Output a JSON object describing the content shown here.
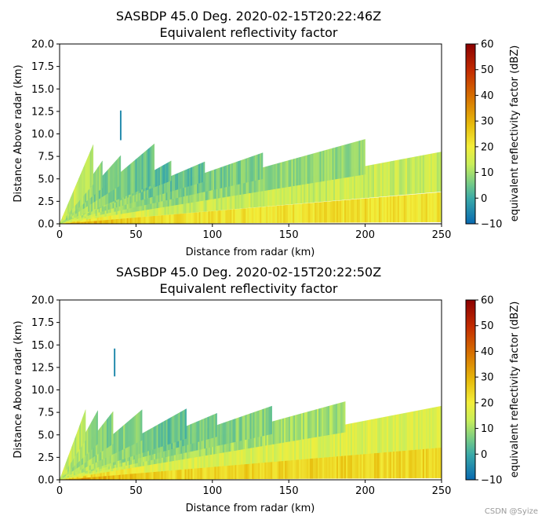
{
  "chart_data": [
    {
      "type": "heatmap",
      "title": "SASBDP 45.0 Deg. 2020-02-15T20:22:46Z",
      "subtitle": "Equivalent reflectivity factor",
      "xlabel": "Distance from radar (km)",
      "ylabel": "Distance Above radar  (km)",
      "xlim": [
        0,
        250
      ],
      "ylim": [
        0,
        20
      ],
      "xticks": [
        "0",
        "50",
        "100",
        "150",
        "200",
        "250"
      ],
      "yticks": [
        "0.0",
        "2.5",
        "5.0",
        "7.5",
        "10.0",
        "12.5",
        "15.0",
        "17.5",
        "20.0"
      ],
      "colorbar": {
        "label": "equivalent reflectivity factor (dBZ)",
        "range": [
          -10,
          60
        ],
        "ticks": [
          "−10",
          "0",
          "10",
          "20",
          "30",
          "40",
          "50",
          "60"
        ]
      },
      "sweeps": [
        {
          "end_x": 250,
          "bottom_end_y": 0.2,
          "top_end_y": 3.5,
          "value": 22
        },
        {
          "end_x": 250,
          "bottom_end_y": 3.6,
          "top_end_y": 8.0,
          "value": 14
        },
        {
          "end_x": 200,
          "bottom_end_y": 5.5,
          "top_end_y": 9.4,
          "value": 8
        },
        {
          "end_x": 133,
          "bottom_end_y": 5.0,
          "top_end_y": 7.9,
          "value": 6
        },
        {
          "end_x": 95,
          "bottom_end_y": 4.7,
          "top_end_y": 6.9,
          "value": 4
        },
        {
          "end_x": 73,
          "bottom_end_y": 4.8,
          "top_end_y": 7.0,
          "value": 3
        },
        {
          "end_x": 62,
          "bottom_end_y": 4.4,
          "top_end_y": 8.9,
          "value": 2
        },
        {
          "end_x": 40,
          "bottom_end_y": 4.3,
          "top_end_y": 7.6,
          "value": 0
        },
        {
          "end_x": 28,
          "bottom_end_y": 4.0,
          "top_end_y": 7.0,
          "value": 2
        },
        {
          "end_x": 22,
          "bottom_end_y": 4.4,
          "top_end_y": 8.8,
          "value": 5
        }
      ],
      "isolated_echo": {
        "x": [
          39.5,
          40.5
        ],
        "y": [
          9.3,
          12.6
        ],
        "value": -5
      }
    },
    {
      "type": "heatmap",
      "title": "SASBDP 45.0 Deg. 2020-02-15T20:22:50Z",
      "subtitle": "Equivalent reflectivity factor",
      "xlabel": "Distance from radar (km)",
      "ylabel": "Distance Above radar  (km)",
      "xlim": [
        0,
        250
      ],
      "ylim": [
        0,
        20
      ],
      "xticks": [
        "0",
        "50",
        "100",
        "150",
        "200",
        "250"
      ],
      "yticks": [
        "0.0",
        "2.5",
        "5.0",
        "7.5",
        "10.0",
        "12.5",
        "15.0",
        "17.5",
        "20.0"
      ],
      "colorbar": {
        "label": "equivalent reflectivity factor (dBZ)",
        "range": [
          -10,
          60
        ],
        "ticks": [
          "−10",
          "0",
          "10",
          "20",
          "30",
          "40",
          "50",
          "60"
        ]
      },
      "sweeps": [
        {
          "end_x": 250,
          "bottom_end_y": 0.2,
          "top_end_y": 3.6,
          "value": 24
        },
        {
          "end_x": 250,
          "bottom_end_y": 3.6,
          "top_end_y": 8.2,
          "value": 16
        },
        {
          "end_x": 187,
          "bottom_end_y": 5.3,
          "top_end_y": 8.7,
          "value": 10
        },
        {
          "end_x": 139,
          "bottom_end_y": 5.1,
          "top_end_y": 8.2,
          "value": 7
        },
        {
          "end_x": 103,
          "bottom_end_y": 4.8,
          "top_end_y": 7.4,
          "value": 5
        },
        {
          "end_x": 83,
          "bottom_end_y": 4.6,
          "top_end_y": 7.9,
          "value": 4
        },
        {
          "end_x": 54,
          "bottom_end_y": 4.4,
          "top_end_y": 7.8,
          "value": 3
        },
        {
          "end_x": 35,
          "bottom_end_y": 4.0,
          "top_end_y": 7.6,
          "value": 1
        },
        {
          "end_x": 25,
          "bottom_end_y": 4.0,
          "top_end_y": 7.7,
          "value": 2
        },
        {
          "end_x": 17,
          "bottom_end_y": 4.4,
          "top_end_y": 7.8,
          "value": 4
        }
      ],
      "isolated_echo": {
        "x": [
          35.5,
          36.5
        ],
        "y": [
          11.5,
          14.6
        ],
        "value": -5
      }
    }
  ],
  "watermark": "CSDN @Syize"
}
